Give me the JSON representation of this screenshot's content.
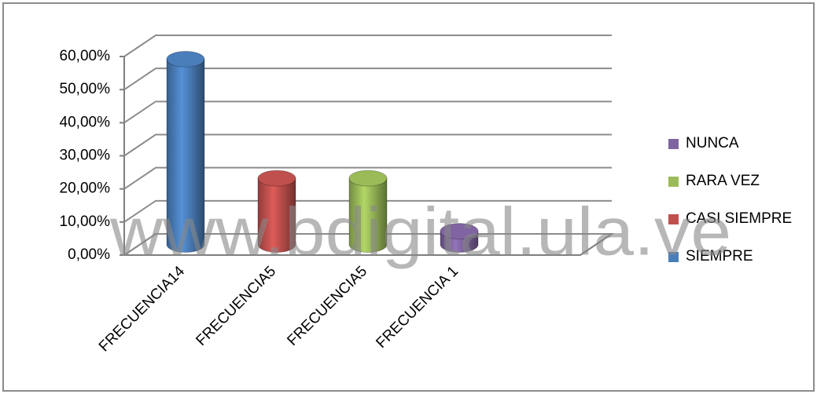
{
  "chart_data": {
    "type": "bar3d",
    "categories": [
      "FRECUENCIA14",
      "FRECUENCIA5",
      "FRECUENCIA5",
      "FRECUENCIA 1"
    ],
    "series": [
      {
        "name": "SIEMPRE",
        "color": "#4a7ebb",
        "values": [
          56,
          null,
          null,
          null
        ]
      },
      {
        "name": "CASI SIEMPRE",
        "color": "#c0504d",
        "values": [
          null,
          20,
          null,
          null
        ]
      },
      {
        "name": "RARA VEZ",
        "color": "#9bbb59",
        "values": [
          null,
          null,
          20,
          null
        ]
      },
      {
        "name": "NUNCA",
        "color": "#8064a2",
        "values": [
          null,
          null,
          null,
          4
        ]
      }
    ],
    "ylim": [
      0,
      60
    ],
    "yticks": [
      {
        "value": 0,
        "label": "0,00%"
      },
      {
        "value": 10,
        "label": "10,00%"
      },
      {
        "value": 20,
        "label": "20,00%"
      },
      {
        "value": 30,
        "label": "30,00%"
      },
      {
        "value": 40,
        "label": "40,00%"
      },
      {
        "value": 50,
        "label": "50,00%"
      },
      {
        "value": 60,
        "label": "60,00%"
      }
    ],
    "grid": true,
    "legend": "right",
    "watermark": "www.bdigital.ula.ve"
  }
}
